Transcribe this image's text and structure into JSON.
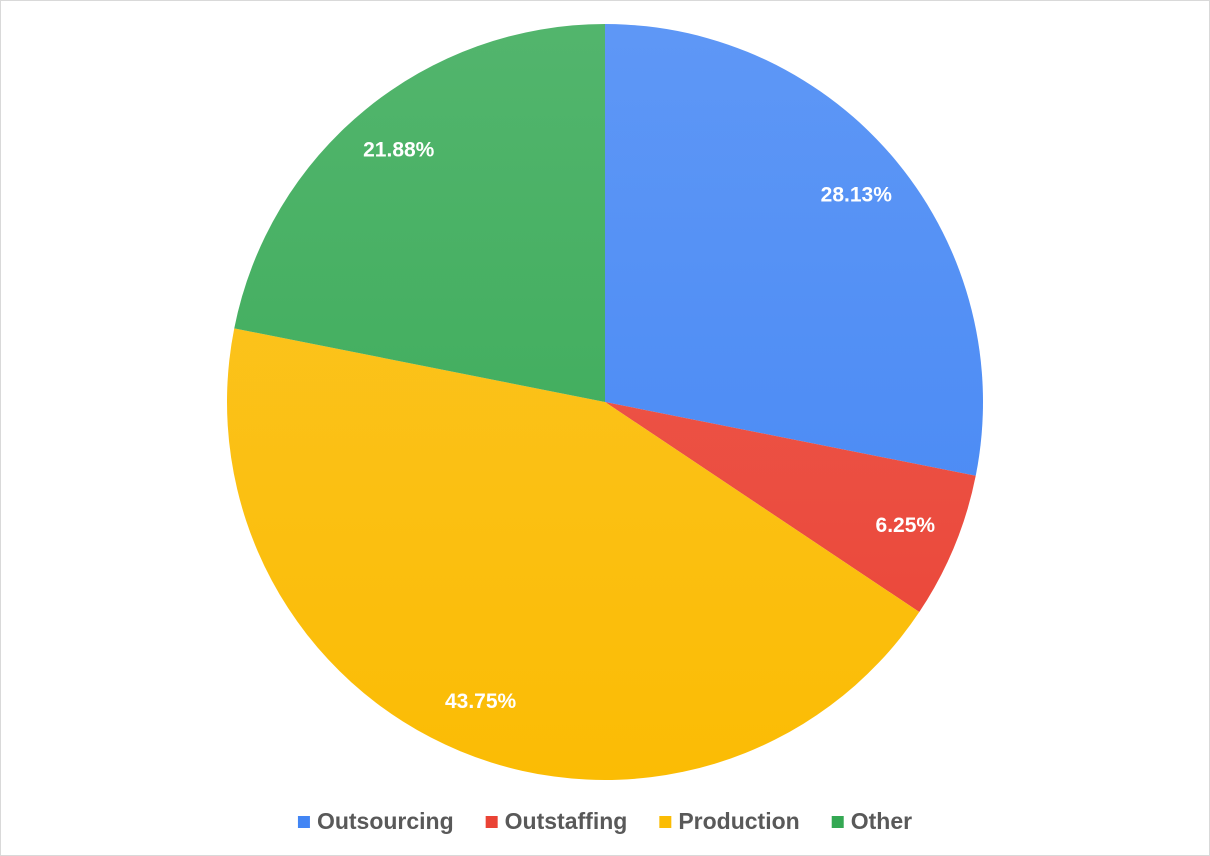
{
  "chart_data": {
    "type": "pie",
    "categories": [
      "Outsourcing",
      "Outstaffing",
      "Production",
      "Other"
    ],
    "values": [
      28.13,
      6.25,
      43.75,
      21.88
    ],
    "value_labels": [
      "28.13%",
      "6.25%",
      "43.75%",
      "21.88%"
    ],
    "colors": [
      "#4285f4",
      "#ea4335",
      "#fbbc04",
      "#34a853"
    ],
    "legend": "bottom"
  }
}
